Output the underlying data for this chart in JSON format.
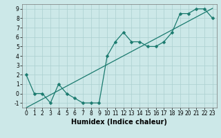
{
  "title": "",
  "xlabel": "Humidex (Indice chaleur)",
  "x_data": [
    0,
    1,
    2,
    3,
    4,
    5,
    6,
    7,
    8,
    9,
    10,
    11,
    12,
    13,
    14,
    15,
    16,
    17,
    18,
    19,
    20,
    21,
    22,
    23
  ],
  "y_data": [
    2,
    0,
    0,
    -1,
    1,
    0,
    -0.5,
    -1,
    -1,
    -1,
    4,
    5.5,
    6.5,
    5.5,
    5.5,
    5,
    5,
    5.5,
    6.5,
    8.5,
    8.5,
    9,
    9,
    8
  ],
  "line_color": "#1a7a6e",
  "bg_color": "#cce8e8",
  "grid_color": "#aacfcf",
  "xlim": [
    -0.5,
    23.5
  ],
  "ylim": [
    -1.5,
    9.5
  ],
  "xticks": [
    0,
    1,
    2,
    3,
    4,
    5,
    6,
    7,
    8,
    9,
    10,
    11,
    12,
    13,
    14,
    15,
    16,
    17,
    18,
    19,
    20,
    21,
    22,
    23
  ],
  "yticks": [
    -1,
    0,
    1,
    2,
    3,
    4,
    5,
    6,
    7,
    8,
    9
  ],
  "tick_fontsize": 5.5,
  "xlabel_fontsize": 7,
  "marker_size": 2.5,
  "line_width": 0.9
}
